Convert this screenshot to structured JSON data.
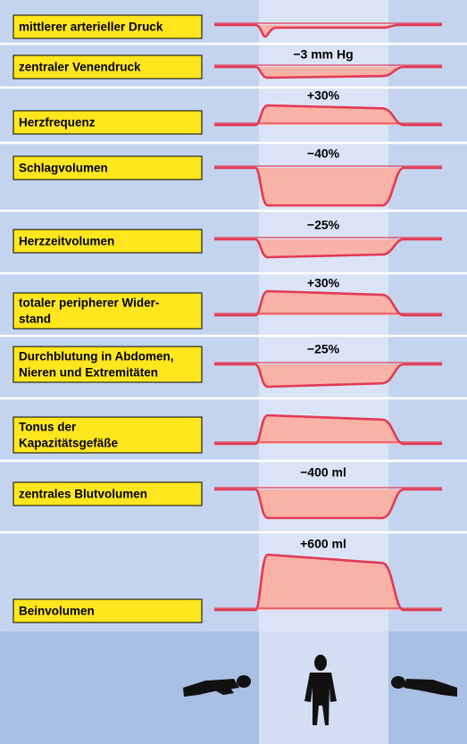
{
  "rows": [
    {
      "label": [
        "mittlerer arterieller Druck"
      ]
    },
    {
      "label": [
        "zentraler Venendruck"
      ],
      "change": "−3 mm Hg"
    },
    {
      "label": [
        "Herzfrequenz"
      ],
      "change": "+30%"
    },
    {
      "label": [
        "Schlagvolumen"
      ],
      "change": "−40%"
    },
    {
      "label": [
        "Herzzeitvolumen"
      ],
      "change": "−25%"
    },
    {
      "label": [
        "totaler peripherer Wider-",
        "stand"
      ],
      "change": "+30%"
    },
    {
      "label": [
        "Durchblutung in Abdomen,",
        "Nieren und Extremitäten"
      ],
      "change": "−25%"
    },
    {
      "label": [
        "Tonus der",
        "Kapazitätsgefäße"
      ]
    },
    {
      "label": [
        "zentrales Blutvolumen"
      ],
      "change": "−400 ml"
    },
    {
      "label": [
        "Beinvolumen"
      ],
      "change": "+600 ml"
    }
  ]
}
